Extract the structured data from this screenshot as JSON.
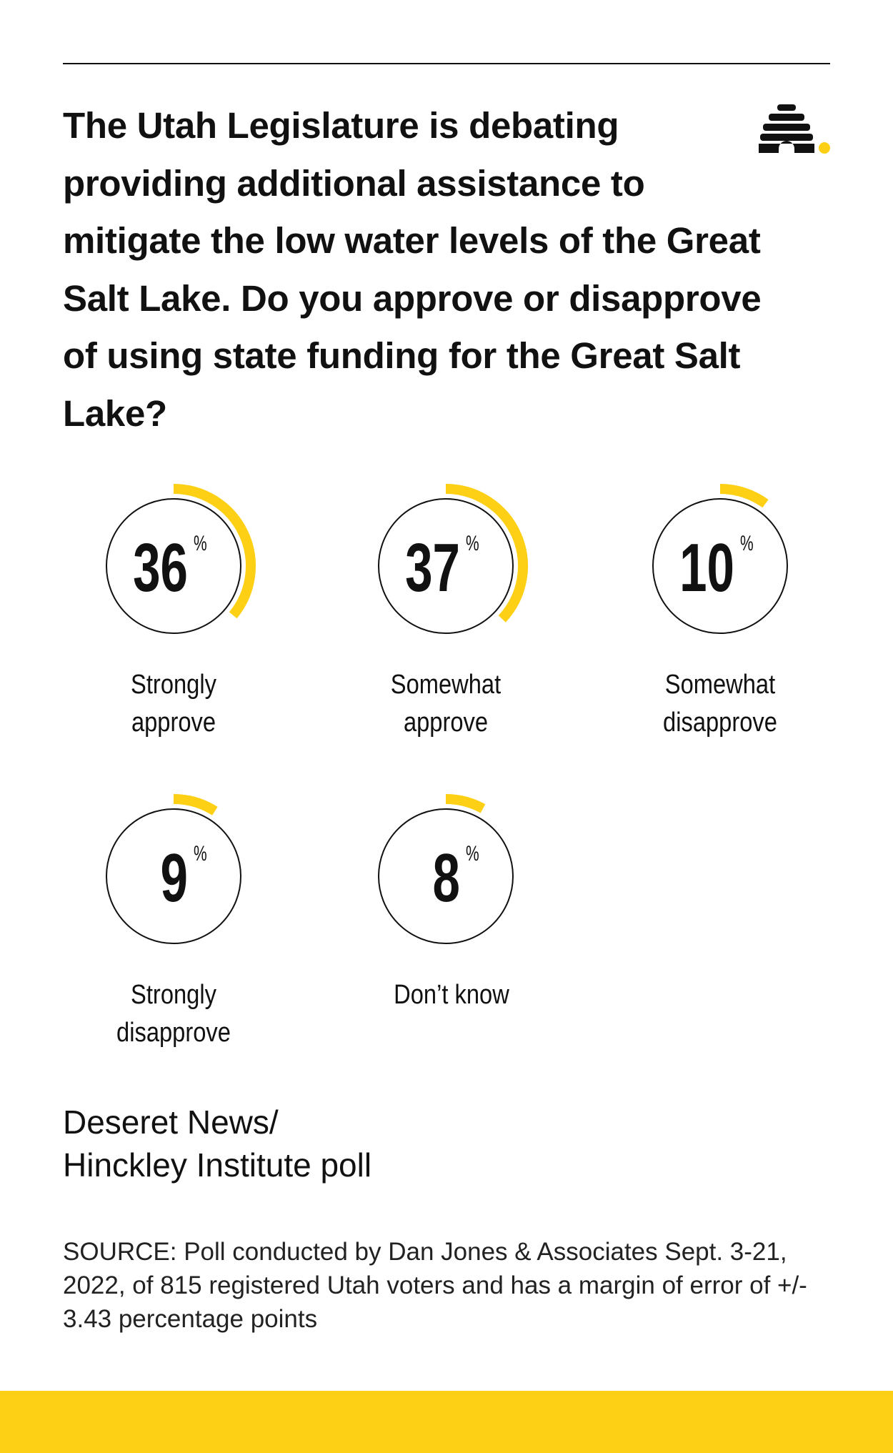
{
  "chart_data": {
    "type": "gauge",
    "title": "The Utah Legislature is debating providing additional assistance to mitigate the low water levels of the Great Salt Lake. Do you approve or disapprove of using state funding for the Great Salt Lake?",
    "categories": [
      "Strongly approve",
      "Somewhat approve",
      "Somewhat disapprove",
      "Strongly disapprove",
      "Don’t know"
    ],
    "values": [
      36,
      37,
      10,
      9,
      8
    ],
    "unit": "%",
    "color": "#fdd016",
    "credit": [
      "Deseret News/",
      "Hinckley Institute poll"
    ],
    "source": "SOURCE: Poll conducted by Dan Jones & Associates Sept. 3-21, 2022, of 815 registered Utah voters and has a margin of error of +/- 3.43 percentage points"
  }
}
